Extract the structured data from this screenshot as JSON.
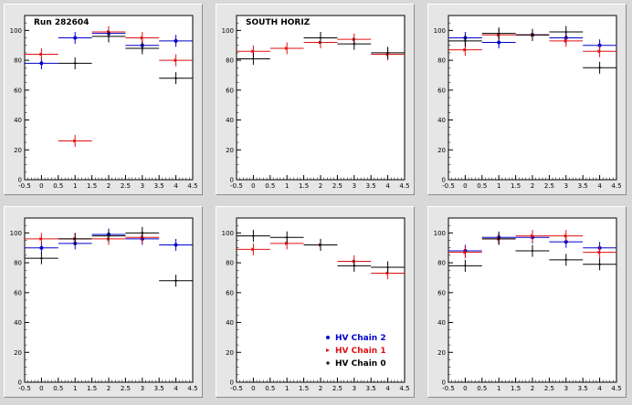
{
  "run_label": "Run 282604",
  "colors": {
    "chain2": "#0000cc",
    "chain1": "#e01010",
    "chain0": "#000000"
  },
  "legend": {
    "position": "bottom-right of middle-bottom panel",
    "entries": [
      {
        "key": "chain2",
        "label": "HV Chain 2"
      },
      {
        "key": "chain1",
        "label": "HV Chain 1"
      },
      {
        "key": "chain0",
        "label": "HV Chain 0"
      }
    ]
  },
  "chart_data": [
    {
      "type": "scatter",
      "title": "",
      "annotation": "Run 282604",
      "xlim": [
        -0.5,
        4.5
      ],
      "ylim": [
        0,
        110
      ],
      "x_ticks": [
        "-0.5",
        "0",
        "0.5",
        "1",
        "1.5",
        "2",
        "2.5",
        "3",
        "3.5",
        "4",
        "4.5"
      ],
      "y_ticks": [
        "0",
        "20",
        "40",
        "60",
        "80",
        "100"
      ],
      "series": [
        {
          "key": "chain2",
          "points": [
            {
              "x": 0,
              "y": 78
            },
            {
              "x": 1,
              "y": 95
            },
            {
              "x": 2,
              "y": 98
            },
            {
              "x": 3,
              "y": 90
            },
            {
              "x": 4,
              "y": 93
            }
          ]
        },
        {
          "key": "chain1",
          "points": [
            {
              "x": 0,
              "y": 84
            },
            {
              "x": 1,
              "y": 26
            },
            {
              "x": 2,
              "y": 99
            },
            {
              "x": 3,
              "y": 95
            },
            {
              "x": 4,
              "y": 80
            }
          ]
        },
        {
          "key": "chain0",
          "points": [
            {
              "x": 1,
              "y": 78
            },
            {
              "x": 2,
              "y": 96
            },
            {
              "x": 3,
              "y": 88
            },
            {
              "x": 4,
              "y": 68
            }
          ]
        }
      ]
    },
    {
      "type": "scatter",
      "title": "",
      "annotation": "SOUTH HORIZ",
      "xlim": [
        -0.5,
        4.5
      ],
      "ylim": [
        0,
        110
      ],
      "x_ticks": [
        "-0.5",
        "0",
        "0.5",
        "1",
        "1.5",
        "2",
        "2.5",
        "3",
        "3.5",
        "4",
        "4.5"
      ],
      "y_ticks": [
        "0",
        "20",
        "40",
        "60",
        "80",
        "100"
      ],
      "series": [
        {
          "key": "chain2",
          "points": []
        },
        {
          "key": "chain1",
          "points": [
            {
              "x": 0,
              "y": 86
            },
            {
              "x": 1,
              "y": 88
            },
            {
              "x": 2,
              "y": 92
            },
            {
              "x": 3,
              "y": 94
            },
            {
              "x": 4,
              "y": 84
            }
          ]
        },
        {
          "key": "chain0",
          "points": [
            {
              "x": 0,
              "y": 81
            },
            {
              "x": 2,
              "y": 95
            },
            {
              "x": 3,
              "y": 91
            },
            {
              "x": 4,
              "y": 85
            }
          ]
        }
      ]
    },
    {
      "type": "scatter",
      "title": "",
      "annotation": "",
      "xlim": [
        -0.5,
        4.5
      ],
      "ylim": [
        0,
        110
      ],
      "x_ticks": [
        "-0.5",
        "0",
        "0.5",
        "1",
        "1.5",
        "2",
        "2.5",
        "3",
        "3.5",
        "4",
        "4.5"
      ],
      "y_ticks": [
        "0",
        "20",
        "40",
        "60",
        "80",
        "100"
      ],
      "series": [
        {
          "key": "chain2",
          "points": [
            {
              "x": 0,
              "y": 95
            },
            {
              "x": 1,
              "y": 92
            },
            {
              "x": 2,
              "y": 97
            },
            {
              "x": 3,
              "y": 95
            },
            {
              "x": 4,
              "y": 90
            }
          ]
        },
        {
          "key": "chain1",
          "points": [
            {
              "x": 0,
              "y": 87
            },
            {
              "x": 1,
              "y": 97
            },
            {
              "x": 2,
              "y": 97
            },
            {
              "x": 3,
              "y": 93
            },
            {
              "x": 4,
              "y": 86
            }
          ]
        },
        {
          "key": "chain0",
          "points": [
            {
              "x": 0,
              "y": 93
            },
            {
              "x": 1,
              "y": 98
            },
            {
              "x": 2,
              "y": 97
            },
            {
              "x": 3,
              "y": 99
            },
            {
              "x": 4,
              "y": 75
            }
          ]
        }
      ]
    },
    {
      "type": "scatter",
      "title": "",
      "annotation": "",
      "xlim": [
        -0.5,
        4.5
      ],
      "ylim": [
        0,
        110
      ],
      "x_ticks": [
        "-0.5",
        "0",
        "0.5",
        "1",
        "1.5",
        "2",
        "2.5",
        "3",
        "3.5",
        "4",
        "4.5"
      ],
      "y_ticks": [
        "0",
        "20",
        "40",
        "60",
        "80",
        "100"
      ],
      "series": [
        {
          "key": "chain2",
          "points": [
            {
              "x": 0,
              "y": 90
            },
            {
              "x": 1,
              "y": 93
            },
            {
              "x": 2,
              "y": 99
            },
            {
              "x": 3,
              "y": 96
            },
            {
              "x": 4,
              "y": 92
            }
          ]
        },
        {
          "key": "chain1",
          "points": [
            {
              "x": 0,
              "y": 96
            },
            {
              "x": 1,
              "y": 96
            },
            {
              "x": 2,
              "y": 96
            },
            {
              "x": 3,
              "y": 97
            },
            {
              "x": 4,
              "y": null
            }
          ]
        },
        {
          "key": "chain0",
          "points": [
            {
              "x": 0,
              "y": 83
            },
            {
              "x": 1,
              "y": 96
            },
            {
              "x": 2,
              "y": 98
            },
            {
              "x": 3,
              "y": 100
            },
            {
              "x": 4,
              "y": 68
            }
          ]
        }
      ]
    },
    {
      "type": "scatter",
      "title": "",
      "annotation": "",
      "xlim": [
        -0.5,
        4.5
      ],
      "ylim": [
        0,
        110
      ],
      "x_ticks": [
        "-0.5",
        "0",
        "0.5",
        "1",
        "1.5",
        "2",
        "2.5",
        "3",
        "3.5",
        "4",
        "4.5"
      ],
      "y_ticks": [
        "0",
        "20",
        "40",
        "60",
        "80",
        "100"
      ],
      "series": [
        {
          "key": "chain2",
          "points": []
        },
        {
          "key": "chain1",
          "points": [
            {
              "x": 0,
              "y": 89
            },
            {
              "x": 1,
              "y": 93
            },
            {
              "x": 2,
              "y": 92
            },
            {
              "x": 3,
              "y": 81
            },
            {
              "x": 4,
              "y": 73
            }
          ]
        },
        {
          "key": "chain0",
          "points": [
            {
              "x": 0,
              "y": 98
            },
            {
              "x": 1,
              "y": 97
            },
            {
              "x": 2,
              "y": 92
            },
            {
              "x": 3,
              "y": 78
            },
            {
              "x": 4,
              "y": 77
            }
          ]
        }
      ]
    },
    {
      "type": "scatter",
      "title": "",
      "annotation": "",
      "xlim": [
        -0.5,
        4.5
      ],
      "ylim": [
        0,
        110
      ],
      "x_ticks": [
        "-0.5",
        "0",
        "0.5",
        "1",
        "1.5",
        "2",
        "2.5",
        "3",
        "3.5",
        "4",
        "4.5"
      ],
      "y_ticks": [
        "0",
        "20",
        "40",
        "60",
        "80",
        "100"
      ],
      "series": [
        {
          "key": "chain2",
          "points": [
            {
              "x": 0,
              "y": 88
            },
            {
              "x": 1,
              "y": 97
            },
            {
              "x": 2,
              "y": 97
            },
            {
              "x": 3,
              "y": 94
            },
            {
              "x": 4,
              "y": 90
            }
          ]
        },
        {
          "key": "chain1",
          "points": [
            {
              "x": 0,
              "y": 87
            },
            {
              "x": 1,
              "y": 96
            },
            {
              "x": 2,
              "y": 98
            },
            {
              "x": 3,
              "y": 98
            },
            {
              "x": 4,
              "y": 87
            }
          ]
        },
        {
          "key": "chain0",
          "points": [
            {
              "x": 0,
              "y": 78
            },
            {
              "x": 1,
              "y": 96
            },
            {
              "x": 2,
              "y": 88
            },
            {
              "x": 3,
              "y": 82
            },
            {
              "x": 4,
              "y": 79
            }
          ]
        }
      ]
    }
  ]
}
